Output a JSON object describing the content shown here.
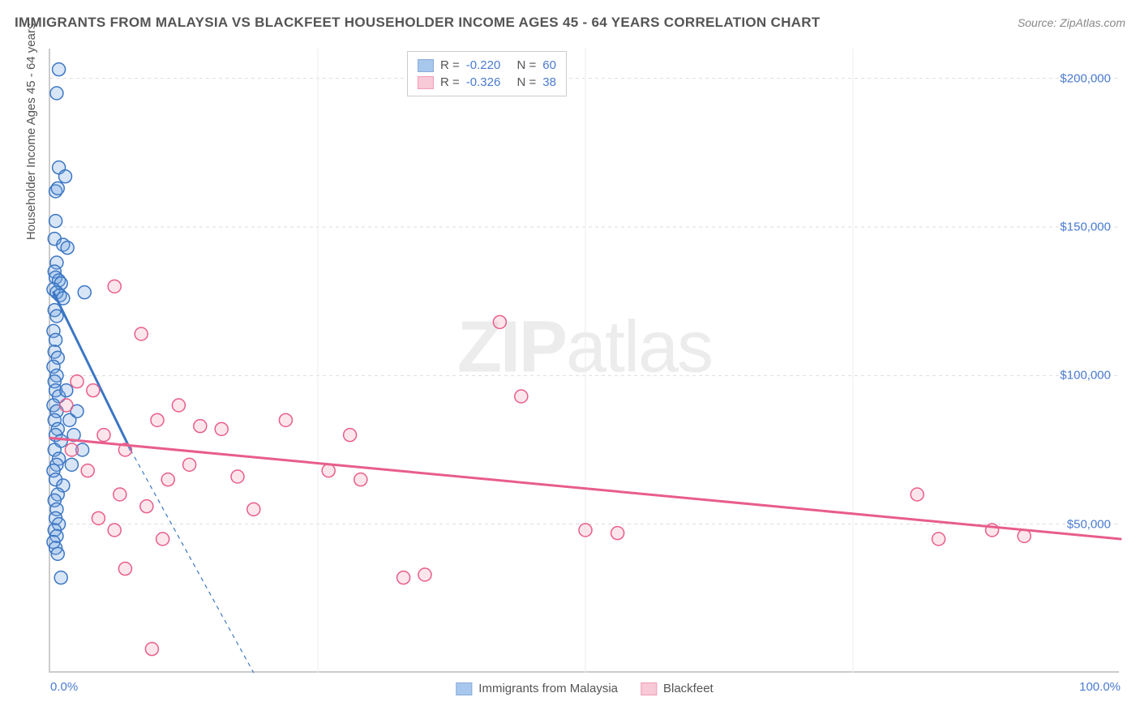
{
  "title": "IMMIGRANTS FROM MALAYSIA VS BLACKFEET HOUSEHOLDER INCOME AGES 45 - 64 YEARS CORRELATION CHART",
  "source": "Source: ZipAtlas.com",
  "yaxis_label": "Householder Income Ages 45 - 64 years",
  "watermark_a": "ZIP",
  "watermark_b": "atlas",
  "chart": {
    "type": "scatter",
    "background_color": "#ffffff",
    "grid_color": "#dddddd",
    "axis_color": "#cccccc",
    "tick_label_color": "#4a7bd0",
    "xlim": [
      0,
      100
    ],
    "ylim": [
      0,
      210000
    ],
    "xticks": [
      0,
      25,
      50,
      75,
      100
    ],
    "xtick_labels": [
      "0.0%",
      "",
      "",
      "",
      "100.0%"
    ],
    "yticks": [
      50000,
      100000,
      150000,
      200000
    ],
    "ytick_labels": [
      "$50,000",
      "$100,000",
      "$150,000",
      "$200,000"
    ],
    "marker_radius": 8,
    "marker_stroke_width": 1.5,
    "marker_fill_opacity": 0.28,
    "line_width_solid": 3,
    "line_width_dash": 1.2
  },
  "series": [
    {
      "name": "Immigrants from Malaysia",
      "color": "#6fa3e0",
      "stroke": "#3b76c4",
      "r_label": "R =",
      "r_value": "-0.220",
      "n_label": "N =",
      "n_value": "60",
      "trend_solid": {
        "x1": 0.3,
        "y1": 128000,
        "x2": 7.5,
        "y2": 75000
      },
      "trend_dash": {
        "x1": 7.5,
        "y1": 75000,
        "x2": 19,
        "y2": 0
      },
      "points": [
        [
          0.8,
          203000
        ],
        [
          0.6,
          195000
        ],
        [
          0.8,
          170000
        ],
        [
          1.4,
          167000
        ],
        [
          0.5,
          162000
        ],
        [
          0.7,
          163000
        ],
        [
          0.5,
          152000
        ],
        [
          0.4,
          146000
        ],
        [
          1.2,
          144000
        ],
        [
          1.6,
          143000
        ],
        [
          0.6,
          138000
        ],
        [
          0.4,
          135000
        ],
        [
          0.5,
          133000
        ],
        [
          0.8,
          132000
        ],
        [
          1.0,
          131000
        ],
        [
          0.3,
          129000
        ],
        [
          0.6,
          128000
        ],
        [
          0.9,
          127000
        ],
        [
          1.2,
          126000
        ],
        [
          3.2,
          128000
        ],
        [
          0.4,
          122000
        ],
        [
          0.6,
          120000
        ],
        [
          0.3,
          115000
        ],
        [
          0.5,
          112000
        ],
        [
          0.4,
          108000
        ],
        [
          0.7,
          106000
        ],
        [
          0.3,
          103000
        ],
        [
          0.6,
          100000
        ],
        [
          0.4,
          98000
        ],
        [
          0.5,
          95000
        ],
        [
          0.8,
          93000
        ],
        [
          0.3,
          90000
        ],
        [
          0.6,
          88000
        ],
        [
          0.4,
          85000
        ],
        [
          0.7,
          82000
        ],
        [
          0.5,
          80000
        ],
        [
          1.0,
          78000
        ],
        [
          0.4,
          75000
        ],
        [
          0.8,
          72000
        ],
        [
          0.6,
          70000
        ],
        [
          0.3,
          68000
        ],
        [
          0.5,
          65000
        ],
        [
          1.2,
          63000
        ],
        [
          0.7,
          60000
        ],
        [
          0.4,
          58000
        ],
        [
          0.6,
          55000
        ],
        [
          0.5,
          52000
        ],
        [
          0.8,
          50000
        ],
        [
          0.4,
          48000
        ],
        [
          0.6,
          46000
        ],
        [
          0.3,
          44000
        ],
        [
          1.0,
          32000
        ],
        [
          0.5,
          42000
        ],
        [
          0.7,
          40000
        ],
        [
          1.8,
          85000
        ],
        [
          2.2,
          80000
        ],
        [
          2.5,
          88000
        ],
        [
          3.0,
          75000
        ],
        [
          1.5,
          95000
        ],
        [
          2.0,
          70000
        ]
      ]
    },
    {
      "name": "Blackfeet",
      "color": "#f4a6bc",
      "stroke": "#e85d8a",
      "r_label": "R =",
      "r_value": "-0.326",
      "n_label": "N =",
      "n_value": "38",
      "trend_solid": {
        "x1": 0,
        "y1": 79000,
        "x2": 100,
        "y2": 45000
      },
      "trend_dash": null,
      "points": [
        [
          2.5,
          98000
        ],
        [
          4.0,
          95000
        ],
        [
          6.0,
          130000
        ],
        [
          8.5,
          114000
        ],
        [
          10.0,
          85000
        ],
        [
          12.0,
          90000
        ],
        [
          14.0,
          83000
        ],
        [
          11.0,
          65000
        ],
        [
          7.0,
          75000
        ],
        [
          5.0,
          80000
        ],
        [
          3.5,
          68000
        ],
        [
          6.5,
          60000
        ],
        [
          9.0,
          56000
        ],
        [
          13.0,
          70000
        ],
        [
          16.0,
          82000
        ],
        [
          17.5,
          66000
        ],
        [
          19.0,
          55000
        ],
        [
          22.0,
          85000
        ],
        [
          26.0,
          68000
        ],
        [
          28.0,
          80000
        ],
        [
          29.0,
          65000
        ],
        [
          33.0,
          32000
        ],
        [
          35.0,
          33000
        ],
        [
          42.0,
          118000
        ],
        [
          44.0,
          93000
        ],
        [
          50.0,
          48000
        ],
        [
          53.0,
          47000
        ],
        [
          7.0,
          35000
        ],
        [
          10.5,
          45000
        ],
        [
          9.5,
          8000
        ],
        [
          81.0,
          60000
        ],
        [
          83.0,
          45000
        ],
        [
          88.0,
          48000
        ],
        [
          91.0,
          46000
        ],
        [
          4.5,
          52000
        ],
        [
          6.0,
          48000
        ],
        [
          1.5,
          90000
        ],
        [
          2.0,
          75000
        ]
      ]
    }
  ]
}
